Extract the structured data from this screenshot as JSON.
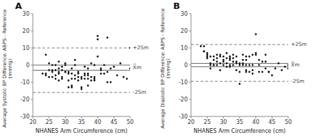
{
  "chart_data": [
    {
      "type": "scatter",
      "title": "A",
      "x_label": "NHANES Arm Circumference (cm)",
      "y_label": "Average Systolic BP Difference: ABPS - Reference\n(mmHg)",
      "xlim": [
        20,
        50
      ],
      "ylim": [
        -30,
        30
      ],
      "xticks": [
        20,
        25,
        30,
        35,
        40,
        45,
        50
      ],
      "yticks": [
        -30,
        -20,
        -10,
        0,
        10,
        20,
        30
      ],
      "grid": false,
      "color": "#111111",
      "x": [
        24,
        24,
        25,
        25,
        25,
        26,
        26,
        26,
        27,
        27,
        27,
        27,
        28,
        28,
        28,
        28,
        28,
        29,
        29,
        29,
        29,
        30,
        30,
        30,
        30,
        31,
        31,
        31,
        31,
        32,
        32,
        32,
        32,
        32,
        33,
        33,
        33,
        33,
        34,
        34,
        34,
        34,
        35,
        35,
        35,
        35,
        36,
        36,
        36,
        36,
        37,
        37,
        37,
        37,
        37,
        38,
        38,
        38,
        39,
        39,
        39,
        39,
        40,
        40,
        40,
        41,
        41,
        41,
        42,
        42,
        43,
        43,
        43,
        44,
        44,
        45,
        46,
        47,
        48,
        49,
        50,
        50,
        23,
        24,
        26
      ],
      "values": [
        -5,
        6,
        -3,
        1,
        -7,
        -4,
        0,
        -3,
        0,
        -3,
        -6,
        -8,
        -2,
        2,
        -4,
        -5,
        -9,
        -1,
        -8,
        -3,
        -7,
        0,
        1,
        -4,
        -4,
        -4,
        -5,
        -9,
        -13,
        -2,
        -5,
        -8,
        -12,
        -13,
        0,
        3,
        -6,
        -8,
        -4,
        -5,
        -7,
        -9,
        -8,
        -7,
        -14,
        -13,
        -1,
        -5,
        -8,
        -6,
        -2,
        -8,
        -5,
        -12,
        -6,
        1,
        -9,
        -7,
        0,
        -9,
        -7,
        -8,
        5,
        17,
        15,
        -2,
        -3,
        -5,
        0,
        -5,
        -4,
        -10,
        16,
        -10,
        -2,
        -1,
        -6,
        1,
        -7,
        -8,
        -2,
        10,
        -5,
        -6,
        -7
      ],
      "reference_lines": [
        {
          "value": 0.0,
          "line_style": "solid",
          "color": "#666666"
        },
        {
          "value": -3.0,
          "line_style": "solid",
          "color": "#666666"
        },
        {
          "value": 10.0,
          "line_style": "dashed",
          "color": "#666666"
        },
        {
          "value": -16.0,
          "line_style": "dashed",
          "color": "#666666"
        }
      ],
      "annotations": [
        {
          "text": "+2Sm",
          "y": 10.0
        },
        {
          "text": "X̅m",
          "y": -1.5
        },
        {
          "text": "-2Sm",
          "y": -16.0
        }
      ]
    },
    {
      "type": "scatter",
      "title": "B",
      "x_label": "NHANES Arm Circumference (cm)",
      "y_label": "Average Diastolic BP Difference: ABPS - Reference\n(mmHg)",
      "xlim": [
        20,
        50
      ],
      "ylim": [
        -30,
        30
      ],
      "xticks": [
        20,
        25,
        30,
        35,
        40,
        45,
        50
      ],
      "yticks": [
        -30,
        -20,
        -10,
        0,
        10,
        20,
        30
      ],
      "grid": false,
      "color": "#111111",
      "x": [
        24,
        24,
        25,
        25,
        25,
        26,
        26,
        26,
        27,
        27,
        27,
        27,
        28,
        28,
        28,
        28,
        29,
        29,
        29,
        29,
        30,
        30,
        30,
        30,
        31,
        31,
        31,
        31,
        32,
        32,
        32,
        32,
        32,
        33,
        33,
        33,
        33,
        34,
        34,
        34,
        34,
        35,
        35,
        35,
        35,
        36,
        36,
        36,
        36,
        37,
        37,
        37,
        37,
        37,
        38,
        38,
        38,
        39,
        39,
        39,
        39,
        40,
        40,
        40,
        41,
        41,
        41,
        42,
        42,
        43,
        43,
        43,
        44,
        44,
        45,
        46,
        47,
        48,
        49,
        50,
        50,
        23,
        24,
        26,
        25
      ],
      "values": [
        11,
        8,
        5,
        7,
        4,
        1,
        0,
        -2,
        5,
        3,
        0,
        0,
        6,
        4,
        2,
        0,
        5,
        1,
        -3,
        6,
        3,
        0,
        2,
        5,
        7,
        4,
        1,
        -1,
        3,
        5,
        0,
        -1,
        4,
        4,
        6,
        2,
        0,
        2,
        1,
        5,
        -3,
        -4,
        -11,
        0,
        1,
        6,
        1,
        0,
        3,
        5,
        3,
        0,
        -3,
        -4,
        0,
        5,
        -4,
        6,
        0,
        -5,
        -3,
        18,
        6,
        7,
        0,
        3,
        -4,
        2,
        -4,
        6,
        -2,
        2,
        -4,
        -4,
        -6,
        -2,
        1,
        -3,
        -1,
        -2,
        0,
        11,
        8,
        5,
        6
      ],
      "reference_lines": [
        {
          "value": 1.0,
          "line_style": "solid",
          "color": "#666666"
        },
        {
          "value": -1.0,
          "line_style": "solid",
          "color": "#666666"
        },
        {
          "value": 12.0,
          "line_style": "dashed",
          "color": "#666666"
        },
        {
          "value": -9.5,
          "line_style": "dashed",
          "color": "#666666"
        }
      ],
      "annotations": [
        {
          "text": "+2Sm",
          "y": 12.0
        },
        {
          "text": "X̅m",
          "y": 0.0
        },
        {
          "text": "-2Sm",
          "y": -9.5
        }
      ]
    }
  ]
}
